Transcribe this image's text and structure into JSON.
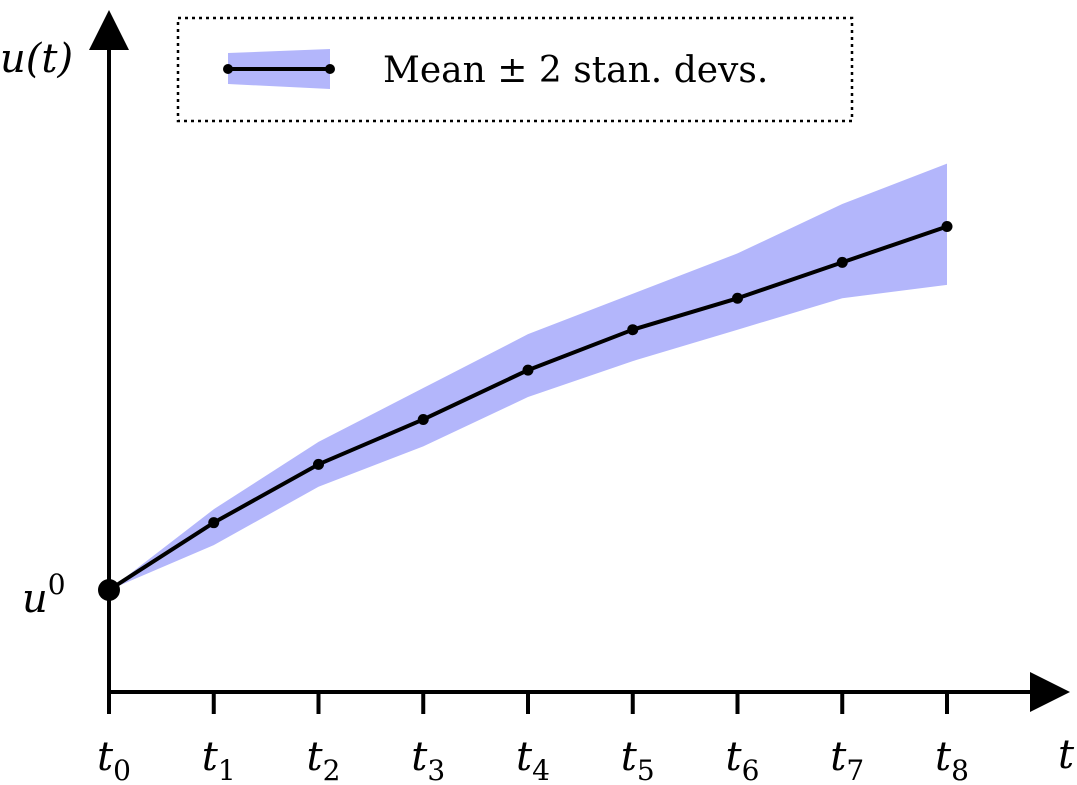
{
  "chart_data": {
    "type": "line",
    "title": "",
    "xlabel": "t",
    "ylabel": "u(t)",
    "y_origin_label": "u",
    "y_origin_superscript": "0",
    "x_ticks": [
      "0",
      "1",
      "2",
      "3",
      "4",
      "5",
      "6",
      "7",
      "8"
    ],
    "x_tick_base": "t",
    "ylim": [
      -0.25,
      1.0
    ],
    "grid": false,
    "legend": {
      "placement": "top",
      "entries": [
        "Mean ± 2 stan. devs."
      ]
    },
    "colors": {
      "band": "#b3b6fb",
      "line": "#000000"
    },
    "series": [
      {
        "name": "Mean ± 2 stan. devs.",
        "x": [
          0,
          1,
          2,
          3,
          4,
          5,
          6,
          7,
          8
        ],
        "mean": [
          0.0,
          0.15,
          0.28,
          0.38,
          0.49,
          0.58,
          0.65,
          0.73,
          0.81
        ],
        "upper": [
          0.0,
          0.18,
          0.33,
          0.45,
          0.57,
          0.66,
          0.75,
          0.86,
          0.95
        ],
        "lower": [
          0.0,
          0.1,
          0.23,
          0.32,
          0.43,
          0.51,
          0.58,
          0.65,
          0.68
        ]
      }
    ]
  }
}
